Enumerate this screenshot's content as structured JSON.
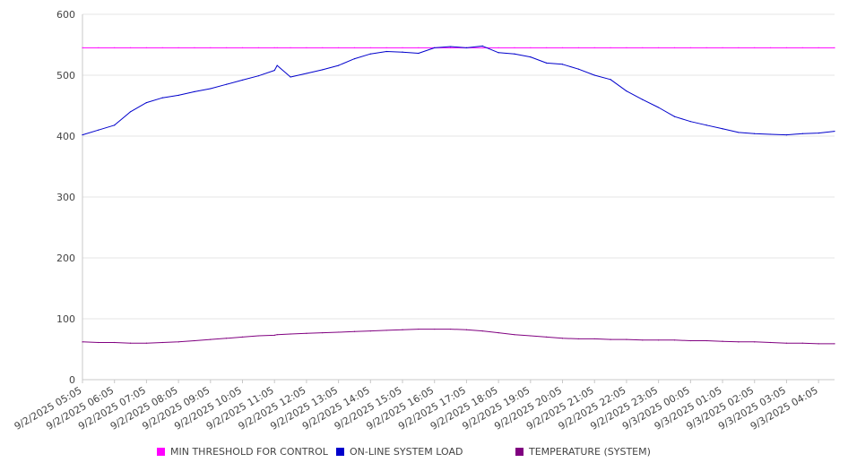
{
  "chart_data": {
    "type": "line",
    "title": "",
    "xlabel": "",
    "ylabel": "",
    "ylim": [
      0,
      600
    ],
    "y_ticks": [
      0,
      100,
      200,
      300,
      400,
      500,
      600
    ],
    "x_tick_labels": [
      "9/2/2025 05:05",
      "9/2/2025 06:05",
      "9/2/2025 07:05",
      "9/2/2025 08:05",
      "9/2/2025 09:05",
      "9/2/2025 10:05",
      "9/2/2025 11:05",
      "9/2/2025 12:05",
      "9/2/2025 13:05",
      "9/2/2025 14:05",
      "9/2/2025 15:05",
      "9/2/2025 16:05",
      "9/2/2025 17:05",
      "9/2/2025 18:05",
      "9/2/2025 19:05",
      "9/2/2025 20:05",
      "9/2/2025 21:05",
      "9/2/2025 22:05",
      "9/2/2025 23:05",
      "9/3/2025 00:05",
      "9/3/2025 01:05",
      "9/3/2025 02:05",
      "9/3/2025 03:05",
      "9/3/2025 04:05"
    ],
    "x": [
      "9/2/2025 05:05",
      "9/2/2025 05:35",
      "9/2/2025 06:05",
      "9/2/2025 06:35",
      "9/2/2025 07:05",
      "9/2/2025 07:35",
      "9/2/2025 08:05",
      "9/2/2025 08:35",
      "9/2/2025 09:05",
      "9/2/2025 09:35",
      "9/2/2025 10:05",
      "9/2/2025 10:35",
      "9/2/2025 11:05",
      "9/2/2025 11:10",
      "9/2/2025 11:35",
      "9/2/2025 12:05",
      "9/2/2025 12:35",
      "9/2/2025 13:05",
      "9/2/2025 13:35",
      "9/2/2025 14:05",
      "9/2/2025 14:35",
      "9/2/2025 15:05",
      "9/2/2025 15:35",
      "9/2/2025 16:05",
      "9/2/2025 16:35",
      "9/2/2025 17:05",
      "9/2/2025 17:35",
      "9/2/2025 18:05",
      "9/2/2025 18:35",
      "9/2/2025 19:05",
      "9/2/2025 19:35",
      "9/2/2025 20:05",
      "9/2/2025 20:35",
      "9/2/2025 21:05",
      "9/2/2025 21:35",
      "9/2/2025 22:05",
      "9/2/2025 22:35",
      "9/2/2025 23:05",
      "9/2/2025 23:35",
      "9/3/2025 00:05",
      "9/3/2025 00:35",
      "9/3/2025 01:05",
      "9/3/2025 01:35",
      "9/3/2025 02:05",
      "9/3/2025 02:35",
      "9/3/2025 03:05",
      "9/3/2025 03:35",
      "9/3/2025 04:05",
      "9/3/2025 04:35"
    ],
    "series": [
      {
        "name": "MIN THRESHOLD FOR CONTROL",
        "color": "#ff00ff",
        "values": [
          545,
          545,
          545,
          545,
          545,
          545,
          545,
          545,
          545,
          545,
          545,
          545,
          545,
          545,
          545,
          545,
          545,
          545,
          545,
          545,
          545,
          545,
          545,
          545,
          545,
          545,
          545,
          545,
          545,
          545,
          545,
          545,
          545,
          545,
          545,
          545,
          545,
          545,
          545,
          545,
          545,
          545,
          545,
          545,
          545,
          545,
          545,
          545,
          545
        ]
      },
      {
        "name": "ON-LINE SYSTEM LOAD",
        "color": "#0000cc",
        "values": [
          402,
          410,
          418,
          440,
          455,
          463,
          467,
          473,
          478,
          485,
          492,
          499,
          508,
          516,
          497,
          503,
          509,
          516,
          527,
          535,
          539,
          538,
          536,
          545,
          547,
          545,
          548,
          537,
          535,
          530,
          520,
          518,
          510,
          500,
          493,
          474,
          460,
          447,
          432,
          424,
          418,
          412,
          406,
          404,
          403,
          402,
          404,
          405,
          408
        ]
      },
      {
        "name": "TEMPERATURE (SYSTEM)",
        "color": "#800080",
        "values": [
          62,
          61,
          61,
          60,
          60,
          61,
          62,
          64,
          66,
          68,
          70,
          72,
          73,
          74,
          75,
          76,
          77,
          78,
          79,
          80,
          81,
          82,
          83,
          83,
          83,
          82,
          80,
          77,
          74,
          72,
          70,
          68,
          67,
          67,
          66,
          66,
          65,
          65,
          65,
          64,
          64,
          63,
          62,
          62,
          61,
          60,
          60,
          59,
          59
        ]
      }
    ],
    "grid": true,
    "legend_position": "bottom"
  },
  "colors": {
    "threshold": "#ff00ff",
    "load": "#0000cc",
    "temperature": "#800080",
    "grid": "#e6e6e6",
    "axis": "#c8c8c8"
  }
}
